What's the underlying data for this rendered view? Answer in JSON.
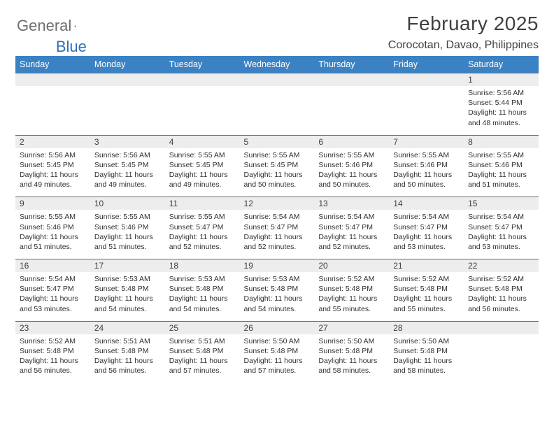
{
  "logo": {
    "word1": "General",
    "word2": "Blue"
  },
  "title": "February 2025",
  "location": "Corocotan, Davao, Philippines",
  "dow": [
    "Sunday",
    "Monday",
    "Tuesday",
    "Wednesday",
    "Thursday",
    "Friday",
    "Saturday"
  ],
  "colors": {
    "header_bg": "#3b82c4",
    "header_fg": "#ffffff",
    "daynum_bg": "#ededed",
    "border": "#6a6a6a",
    "text": "#303030",
    "logo_gray": "#6e6e6e",
    "logo_blue": "#2f6fba"
  },
  "weeks": [
    [
      {
        "n": "",
        "lines": []
      },
      {
        "n": "",
        "lines": []
      },
      {
        "n": "",
        "lines": []
      },
      {
        "n": "",
        "lines": []
      },
      {
        "n": "",
        "lines": []
      },
      {
        "n": "",
        "lines": []
      },
      {
        "n": "1",
        "lines": [
          "Sunrise: 5:56 AM",
          "Sunset: 5:44 PM",
          "Daylight: 11 hours",
          "and 48 minutes."
        ]
      }
    ],
    [
      {
        "n": "2",
        "lines": [
          "Sunrise: 5:56 AM",
          "Sunset: 5:45 PM",
          "Daylight: 11 hours",
          "and 49 minutes."
        ]
      },
      {
        "n": "3",
        "lines": [
          "Sunrise: 5:56 AM",
          "Sunset: 5:45 PM",
          "Daylight: 11 hours",
          "and 49 minutes."
        ]
      },
      {
        "n": "4",
        "lines": [
          "Sunrise: 5:55 AM",
          "Sunset: 5:45 PM",
          "Daylight: 11 hours",
          "and 49 minutes."
        ]
      },
      {
        "n": "5",
        "lines": [
          "Sunrise: 5:55 AM",
          "Sunset: 5:45 PM",
          "Daylight: 11 hours",
          "and 50 minutes."
        ]
      },
      {
        "n": "6",
        "lines": [
          "Sunrise: 5:55 AM",
          "Sunset: 5:46 PM",
          "Daylight: 11 hours",
          "and 50 minutes."
        ]
      },
      {
        "n": "7",
        "lines": [
          "Sunrise: 5:55 AM",
          "Sunset: 5:46 PM",
          "Daylight: 11 hours",
          "and 50 minutes."
        ]
      },
      {
        "n": "8",
        "lines": [
          "Sunrise: 5:55 AM",
          "Sunset: 5:46 PM",
          "Daylight: 11 hours",
          "and 51 minutes."
        ]
      }
    ],
    [
      {
        "n": "9",
        "lines": [
          "Sunrise: 5:55 AM",
          "Sunset: 5:46 PM",
          "Daylight: 11 hours",
          "and 51 minutes."
        ]
      },
      {
        "n": "10",
        "lines": [
          "Sunrise: 5:55 AM",
          "Sunset: 5:46 PM",
          "Daylight: 11 hours",
          "and 51 minutes."
        ]
      },
      {
        "n": "11",
        "lines": [
          "Sunrise: 5:55 AM",
          "Sunset: 5:47 PM",
          "Daylight: 11 hours",
          "and 52 minutes."
        ]
      },
      {
        "n": "12",
        "lines": [
          "Sunrise: 5:54 AM",
          "Sunset: 5:47 PM",
          "Daylight: 11 hours",
          "and 52 minutes."
        ]
      },
      {
        "n": "13",
        "lines": [
          "Sunrise: 5:54 AM",
          "Sunset: 5:47 PM",
          "Daylight: 11 hours",
          "and 52 minutes."
        ]
      },
      {
        "n": "14",
        "lines": [
          "Sunrise: 5:54 AM",
          "Sunset: 5:47 PM",
          "Daylight: 11 hours",
          "and 53 minutes."
        ]
      },
      {
        "n": "15",
        "lines": [
          "Sunrise: 5:54 AM",
          "Sunset: 5:47 PM",
          "Daylight: 11 hours",
          "and 53 minutes."
        ]
      }
    ],
    [
      {
        "n": "16",
        "lines": [
          "Sunrise: 5:54 AM",
          "Sunset: 5:47 PM",
          "Daylight: 11 hours",
          "and 53 minutes."
        ]
      },
      {
        "n": "17",
        "lines": [
          "Sunrise: 5:53 AM",
          "Sunset: 5:48 PM",
          "Daylight: 11 hours",
          "and 54 minutes."
        ]
      },
      {
        "n": "18",
        "lines": [
          "Sunrise: 5:53 AM",
          "Sunset: 5:48 PM",
          "Daylight: 11 hours",
          "and 54 minutes."
        ]
      },
      {
        "n": "19",
        "lines": [
          "Sunrise: 5:53 AM",
          "Sunset: 5:48 PM",
          "Daylight: 11 hours",
          "and 54 minutes."
        ]
      },
      {
        "n": "20",
        "lines": [
          "Sunrise: 5:52 AM",
          "Sunset: 5:48 PM",
          "Daylight: 11 hours",
          "and 55 minutes."
        ]
      },
      {
        "n": "21",
        "lines": [
          "Sunrise: 5:52 AM",
          "Sunset: 5:48 PM",
          "Daylight: 11 hours",
          "and 55 minutes."
        ]
      },
      {
        "n": "22",
        "lines": [
          "Sunrise: 5:52 AM",
          "Sunset: 5:48 PM",
          "Daylight: 11 hours",
          "and 56 minutes."
        ]
      }
    ],
    [
      {
        "n": "23",
        "lines": [
          "Sunrise: 5:52 AM",
          "Sunset: 5:48 PM",
          "Daylight: 11 hours",
          "and 56 minutes."
        ]
      },
      {
        "n": "24",
        "lines": [
          "Sunrise: 5:51 AM",
          "Sunset: 5:48 PM",
          "Daylight: 11 hours",
          "and 56 minutes."
        ]
      },
      {
        "n": "25",
        "lines": [
          "Sunrise: 5:51 AM",
          "Sunset: 5:48 PM",
          "Daylight: 11 hours",
          "and 57 minutes."
        ]
      },
      {
        "n": "26",
        "lines": [
          "Sunrise: 5:50 AM",
          "Sunset: 5:48 PM",
          "Daylight: 11 hours",
          "and 57 minutes."
        ]
      },
      {
        "n": "27",
        "lines": [
          "Sunrise: 5:50 AM",
          "Sunset: 5:48 PM",
          "Daylight: 11 hours",
          "and 58 minutes."
        ]
      },
      {
        "n": "28",
        "lines": [
          "Sunrise: 5:50 AM",
          "Sunset: 5:48 PM",
          "Daylight: 11 hours",
          "and 58 minutes."
        ]
      },
      {
        "n": "",
        "lines": []
      }
    ]
  ]
}
